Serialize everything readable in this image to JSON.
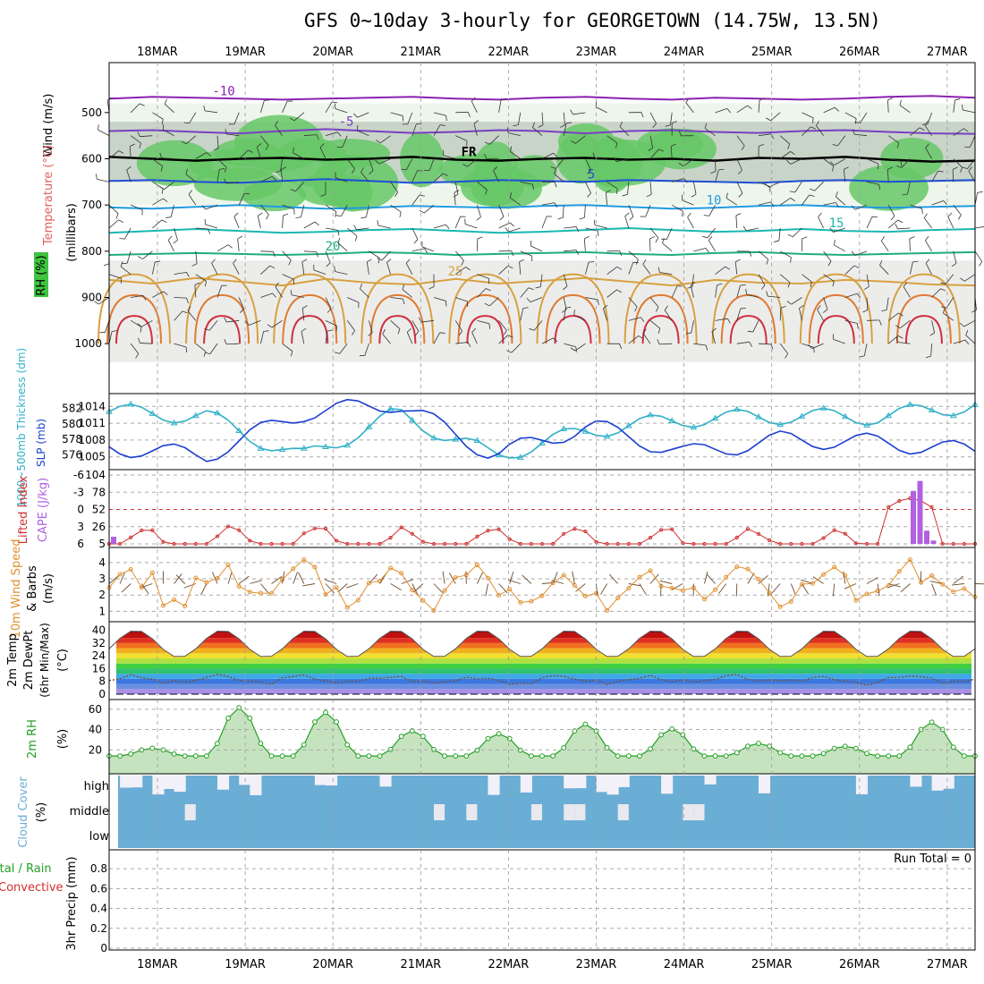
{
  "title": "GFS 0~10day 3-hourly for GEORGETOWN (14.75W, 13.5N)",
  "dates": [
    "18MAR",
    "19MAR",
    "20MAR",
    "21MAR",
    "22MAR",
    "23MAR",
    "24MAR",
    "25MAR",
    "26MAR",
    "27MAR"
  ],
  "panels": {
    "profile": {
      "axis_label_wind": "Wind (m/s)",
      "axis_label_temp": "Temperature (°C)",
      "axis_label_rh": "RH (%)",
      "axis_label_unit": "(millibars)",
      "y_ticks": [
        "500",
        "600",
        "700",
        "800",
        "900",
        "1000"
      ],
      "freezing_label": "FR",
      "temp_contours": [
        {
          "label": "-10",
          "color": "#8b22b0",
          "p": [
            470,
            466,
            468,
            470,
            472,
            470,
            468,
            466,
            470,
            472,
            468,
            466,
            470,
            472,
            468,
            470,
            472,
            470,
            466,
            464,
            468
          ]
        },
        {
          "label": "-5",
          "color": "#7a3fc4",
          "p": [
            540,
            538,
            542,
            545,
            540,
            536,
            540,
            544,
            542,
            538,
            540,
            545,
            540,
            538,
            542,
            544,
            540,
            538,
            542,
            545,
            546
          ]
        },
        {
          "label": "FR",
          "color": "#000000",
          "p": [
            596,
            600,
            604,
            600,
            598,
            602,
            600,
            596,
            602,
            604,
            600,
            598,
            602,
            600,
            604,
            598,
            600,
            596,
            602,
            606,
            604
          ]
        },
        {
          "label": "5",
          "color": "#1d4fd8",
          "p": [
            648,
            646,
            650,
            652,
            648,
            644,
            648,
            652,
            650,
            646,
            648,
            650,
            646,
            648,
            650,
            652,
            648,
            646,
            650,
            648,
            646
          ]
        },
        {
          "label": "10",
          "color": "#1f9ae0",
          "p": [
            705,
            708,
            704,
            700,
            704,
            708,
            706,
            702,
            704,
            706,
            702,
            700,
            704,
            708,
            706,
            702,
            700,
            704,
            706,
            704,
            702
          ]
        },
        {
          "label": "15",
          "color": "#18b8b0",
          "p": [
            760,
            756,
            752,
            756,
            760,
            758,
            754,
            752,
            756,
            760,
            758,
            754,
            750,
            754,
            758,
            756,
            752,
            756,
            758,
            754,
            752
          ]
        },
        {
          "label": "20",
          "color": "#1fae78",
          "p": [
            808,
            806,
            804,
            806,
            808,
            806,
            802,
            804,
            808,
            806,
            804,
            802,
            806,
            808,
            804,
            802,
            806,
            808,
            806,
            804,
            802
          ]
        },
        {
          "label": "25",
          "color": "#d8a040",
          "p": [
            862,
            870,
            858,
            866,
            874,
            860,
            868,
            872,
            860,
            870,
            864,
            858,
            866,
            874,
            862,
            868,
            870,
            862,
            866,
            872,
            874
          ]
        }
      ]
    },
    "thickness_slp": {
      "axis_label_thickness": "1000~500mb Thickness (dm)",
      "axis_label_slp": "SLP (mb)",
      "thickness_ticks": [
        "576",
        "578",
        "580",
        "582"
      ],
      "slp_ticks": [
        "1005",
        "1008",
        "1011",
        "1014"
      ],
      "series_thickness_color": "#30b0c8",
      "series_slp_color": "#1a3fd0"
    },
    "stability": {
      "axis_label_li": "Lifted Index",
      "axis_label_cape": "CAPE (J/kg)",
      "li_ticks": [
        "-6",
        "-3",
        "0",
        "3",
        "6"
      ],
      "cape_ticks": [
        "104",
        "78",
        "52",
        "26",
        "5"
      ],
      "li_color": "#d03030",
      "cape_color": "#b060e0"
    },
    "wind10": {
      "axis_label_speed": "10m Wind Speed",
      "axis_label_barbs": "& Barbs",
      "axis_label_unit": "(m/s)",
      "y_ticks": [
        "1",
        "2",
        "3",
        "4"
      ],
      "color": "#e09030"
    },
    "temp2m": {
      "axis_label_temp": "2m Temp",
      "axis_label_dewpt": "2m DewPt",
      "axis_label_minmax": "(6hr Min/Max)",
      "axis_label_unit": "(°C)",
      "y_ticks": [
        "0",
        "8",
        "16",
        "24",
        "32",
        "40"
      ]
    },
    "rh2m": {
      "axis_label": "2m RH",
      "axis_label_unit": "(%)",
      "y_ticks": [
        "20",
        "40",
        "60"
      ],
      "color": "#22a022"
    },
    "cloud": {
      "axis_label": "Cloud Cover",
      "axis_label_unit": "(%)",
      "levels": [
        "high",
        "middle",
        "low"
      ],
      "color": "#6aaed6"
    },
    "precip": {
      "axis_label_total": "Total / Rain",
      "axis_label_conv": "Convective",
      "axis_label_unit": "3hr Precip (mm)",
      "y_ticks": [
        "0",
        "0.2",
        "0.4",
        "0.6",
        "0.8"
      ],
      "run_total": "Run Total = 0"
    }
  },
  "chart_data": [
    {
      "type": "line",
      "title": "1000~500mb Thickness (dm) / SLP (mb)",
      "x": [
        "18MAR",
        "19MAR",
        "20MAR",
        "21MAR",
        "22MAR",
        "23MAR",
        "24MAR",
        "25MAR",
        "26MAR",
        "27MAR"
      ],
      "series": [
        {
          "name": "1000~500mb Thickness (dm)",
          "values": [
            581.6,
            581.0,
            575.6,
            581.3,
            575.8,
            579.2,
            580.6,
            581.0,
            580.9,
            582.5
          ]
        },
        {
          "name": "SLP (mb)",
          "values": [
            1006.8,
            1005.2,
            1012.8,
            1014.6,
            1005.3,
            1010.6,
            1005.6,
            1008.1,
            1007.6,
            1006.0
          ]
        }
      ]
    },
    {
      "type": "bar",
      "title": "CAPE (J/kg)",
      "x": [
        "26MAR",
        "26MAR",
        "26MAR",
        "26MAR"
      ],
      "values": [
        80,
        95,
        20,
        5
      ]
    },
    {
      "type": "area",
      "title": "2m RH (%)",
      "x": [
        "18MAR",
        "19MAR",
        "20MAR",
        "21MAR",
        "22MAR",
        "23MAR",
        "24MAR",
        "25MAR",
        "26MAR",
        "27MAR"
      ],
      "values": [
        20,
        62,
        57,
        38,
        35,
        45,
        40,
        25,
        22,
        47
      ],
      "ylim": [
        0,
        65
      ]
    },
    {
      "type": "bar",
      "title": "3hr Precip (mm)",
      "x": [
        "18MAR",
        "19MAR",
        "20MAR",
        "21MAR",
        "22MAR",
        "23MAR",
        "24MAR",
        "25MAR",
        "26MAR",
        "27MAR"
      ],
      "values": [
        0,
        0,
        0,
        0,
        0,
        0,
        0,
        0,
        0,
        0
      ],
      "ylim": [
        0,
        0.9
      ]
    }
  ]
}
